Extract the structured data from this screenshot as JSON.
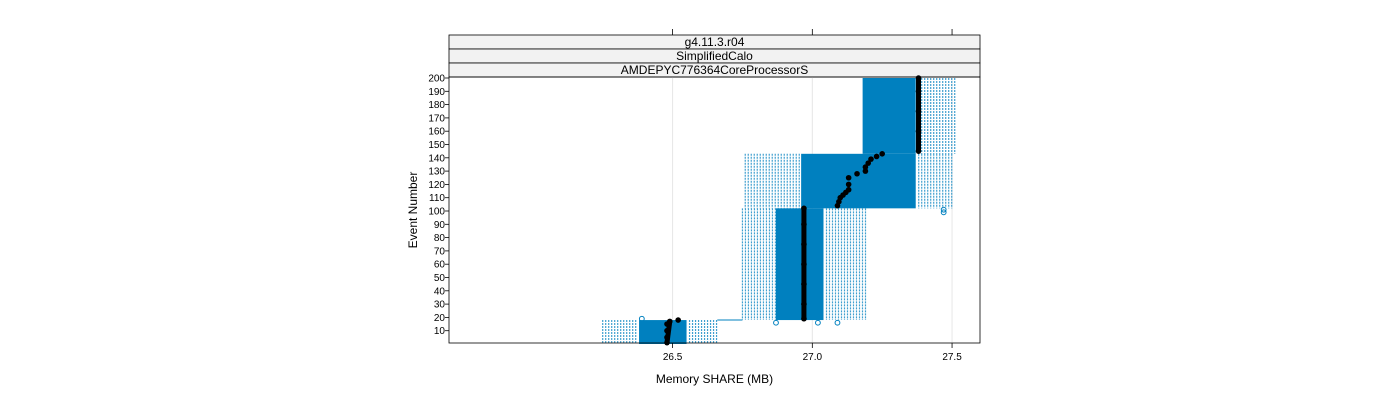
{
  "chart_data": {
    "type": "box-and-whisker (horizontal, per event-number band)",
    "strips": [
      "g4.11.3.r04",
      "SimplifiedCalo",
      "AMDEPYC776364CoreProcessorS"
    ],
    "xlabel": "Memory SHARE (MB)",
    "ylabel": "Event Number",
    "xlim": [
      25.7,
      27.6
    ],
    "ylim": [
      0,
      200
    ],
    "x_ticks": [
      {
        "value": 26.5,
        "label": "26.5"
      },
      {
        "value": 27.0,
        "label": "27.0"
      },
      {
        "value": 27.5,
        "label": "27.5"
      }
    ],
    "y_ticks": [
      {
        "value": 10,
        "label": "10"
      },
      {
        "value": 20,
        "label": "20"
      },
      {
        "value": 30,
        "label": "30"
      },
      {
        "value": 40,
        "label": "40"
      },
      {
        "value": 50,
        "label": "50"
      },
      {
        "value": 60,
        "label": "60"
      },
      {
        "value": 70,
        "label": "70"
      },
      {
        "value": 80,
        "label": "80"
      },
      {
        "value": 90,
        "label": "90"
      },
      {
        "value": 100,
        "label": "100"
      },
      {
        "value": 110,
        "label": "110"
      },
      {
        "value": 120,
        "label": "120"
      },
      {
        "value": 130,
        "label": "130"
      },
      {
        "value": 140,
        "label": "140"
      },
      {
        "value": 150,
        "label": "150"
      },
      {
        "value": 160,
        "label": "160"
      },
      {
        "value": 170,
        "label": "170"
      },
      {
        "value": 180,
        "label": "180"
      },
      {
        "value": 190,
        "label": "190"
      },
      {
        "value": 200,
        "label": "200"
      }
    ],
    "grid": true,
    "colors": {
      "box": "#0080bf",
      "whisker": "#0080bf",
      "median": "#000000",
      "strip_bg": "#f2f2f2",
      "frame": "#000000",
      "grid": "#e6e6e6"
    },
    "bands": [
      {
        "event_min": 0,
        "event_max": 18,
        "whisker_low": 26.25,
        "q1": 26.38,
        "q3": 26.55,
        "whisker_high": 26.66
      },
      {
        "event_min": 18,
        "event_max": 102,
        "whisker_low": 26.75,
        "q1": 26.87,
        "q3": 27.04,
        "whisker_high": 27.2
      },
      {
        "event_min": 102,
        "event_max": 143,
        "whisker_low": 26.76,
        "q1": 26.96,
        "q3": 27.37,
        "whisker_high": 27.5
      },
      {
        "event_min": 143,
        "event_max": 200,
        "whisker_low": 27.18,
        "q1": 27.18,
        "q3": 27.37,
        "whisker_high": 27.52
      }
    ],
    "median_series": [
      {
        "x": 26.48,
        "y": 1
      },
      {
        "x": 26.48,
        "y": 5
      },
      {
        "x": 26.48,
        "y": 10
      },
      {
        "x": 26.48,
        "y": 15
      },
      {
        "x": 26.49,
        "y": 17
      },
      {
        "x": 26.52,
        "y": 18
      },
      {
        "x": 26.97,
        "y": 19
      },
      {
        "x": 26.97,
        "y": 30
      },
      {
        "x": 26.97,
        "y": 45
      },
      {
        "x": 26.97,
        "y": 60
      },
      {
        "x": 26.97,
        "y": 75
      },
      {
        "x": 26.97,
        "y": 90
      },
      {
        "x": 26.97,
        "y": 102
      },
      {
        "x": 27.09,
        "y": 104
      },
      {
        "x": 27.095,
        "y": 107
      },
      {
        "x": 27.1,
        "y": 110
      },
      {
        "x": 27.11,
        "y": 112
      },
      {
        "x": 27.12,
        "y": 114
      },
      {
        "x": 27.13,
        "y": 116
      },
      {
        "x": 27.13,
        "y": 120
      },
      {
        "x": 27.13,
        "y": 125
      },
      {
        "x": 27.16,
        "y": 128
      },
      {
        "x": 27.19,
        "y": 130
      },
      {
        "x": 27.19,
        "y": 133
      },
      {
        "x": 27.2,
        "y": 136
      },
      {
        "x": 27.21,
        "y": 139
      },
      {
        "x": 27.23,
        "y": 141
      },
      {
        "x": 27.25,
        "y": 143
      },
      {
        "x": 27.38,
        "y": 145
      },
      {
        "x": 27.38,
        "y": 160
      },
      {
        "x": 27.38,
        "y": 175
      },
      {
        "x": 27.38,
        "y": 190
      },
      {
        "x": 27.38,
        "y": 200
      }
    ],
    "outliers": [
      {
        "x": 26.39,
        "y": 19
      },
      {
        "x": 26.87,
        "y": 16
      },
      {
        "x": 27.02,
        "y": 16
      },
      {
        "x": 27.09,
        "y": 16
      },
      {
        "x": 27.47,
        "y": 99
      },
      {
        "x": 27.47,
        "y": 101
      }
    ]
  }
}
